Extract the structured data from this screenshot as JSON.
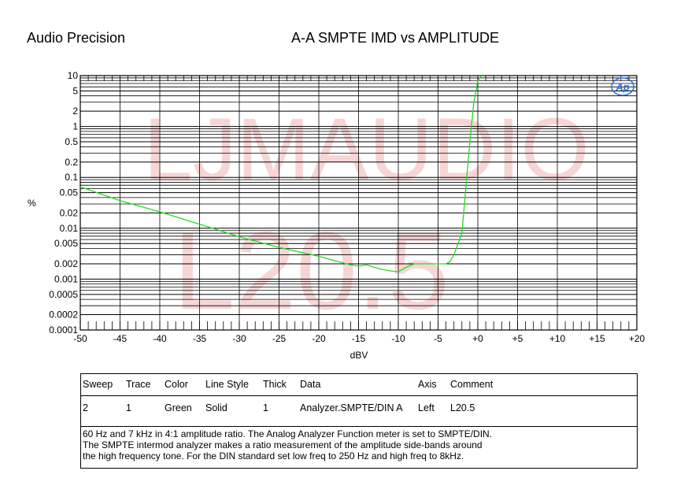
{
  "header": {
    "brand": "Audio Precision",
    "title": "A-A SMPTE IMD vs AMPLITUDE"
  },
  "chart_data": {
    "type": "line",
    "title": "A-A SMPTE IMD vs AMPLITUDE",
    "xlabel": "dBV",
    "ylabel": "%",
    "xlim": [
      -50,
      20
    ],
    "ylim": [
      0.0001,
      10
    ],
    "yscale": "log",
    "grid": true,
    "x_ticks": [
      "-50",
      "-45",
      "-40",
      "-35",
      "-30",
      "-25",
      "-20",
      "-15",
      "-10",
      "-5",
      "+0",
      "+5",
      "+10",
      "+15",
      "+20"
    ],
    "y_ticks": [
      "10",
      "5",
      "2",
      "1",
      "0.5",
      "0.2",
      "0.1",
      "0.05",
      "0.02",
      "0.01",
      "0.005",
      "0.002",
      "0.001",
      "0.0005",
      "0.0002",
      "0.0001"
    ],
    "watermark": [
      "LJMAUDIO",
      "L20.5"
    ],
    "logo_text": "Ap",
    "series": [
      {
        "color": "#22dd22",
        "x": [
          -50,
          -45,
          -40,
          -35,
          -30,
          -25,
          -20,
          -17,
          -16,
          -15,
          -14,
          -13,
          -12,
          -11,
          -10,
          -9,
          -8,
          -7,
          -6,
          -5,
          -4,
          -3.5,
          -3,
          -2,
          -1,
          -0.5,
          0,
          0.5
        ],
        "y": [
          0.065,
          0.035,
          0.021,
          0.012,
          0.0068,
          0.0042,
          0.0028,
          0.0021,
          0.0019,
          0.0018,
          0.0019,
          0.0017,
          0.00155,
          0.00145,
          0.0014,
          0.0017,
          0.002,
          0.002,
          0.002,
          0.002,
          0.002,
          0.0022,
          0.003,
          0.008,
          0.5,
          3,
          8,
          10
        ]
      }
    ]
  },
  "legend": {
    "headers": [
      "Sweep",
      "Trace",
      "Color",
      "Line Style",
      "Thick",
      "Data",
      "Axis",
      "Comment"
    ],
    "row": [
      "2",
      "1",
      "Green",
      "Solid",
      "1",
      "Analyzer.SMPTE/DIN A",
      "Left",
      "L20.5"
    ],
    "notes": [
      "60 Hz and 7 kHz in 4:1 amplitude ratio.  The Analog Analyzer Function meter is set to SMPTE/DIN.",
      "The SMPTE intermod analyzer makes a ratio measurement of the amplitude side-bands around",
      "the high frequency tone.  For the DIN standard set low freq to 250 Hz and high freq to 8kHz."
    ]
  }
}
